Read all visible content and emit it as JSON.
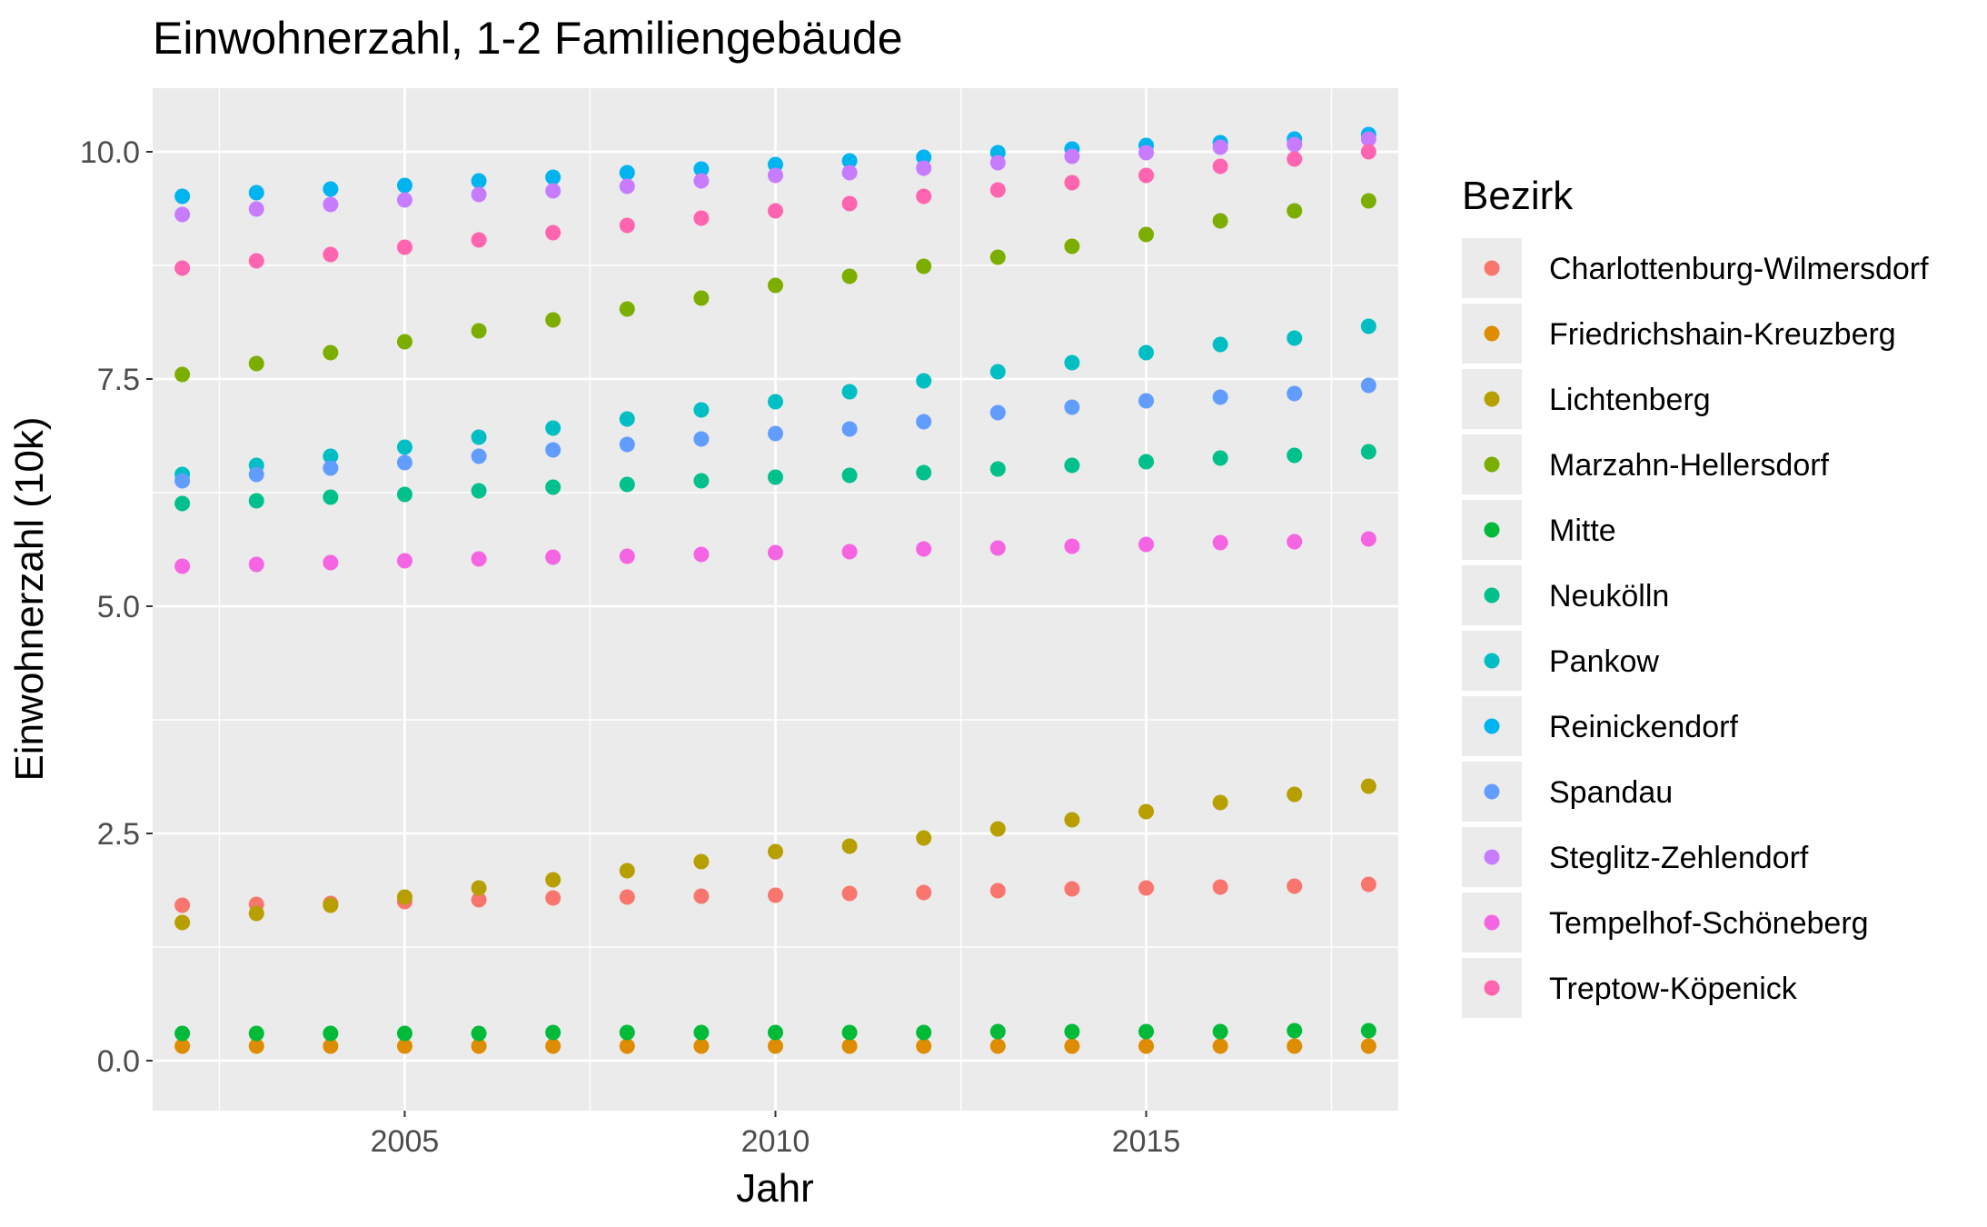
{
  "chart_data": {
    "type": "scatter",
    "title": "Einwohnerzahl, 1-2 Familiengebäude",
    "xlabel": "Jahr",
    "ylabel": "Einwohnerzahl (10k)",
    "xlim": [
      2001.6,
      2018.4
    ],
    "ylim": [
      -0.55,
      10.7
    ],
    "x_ticks": [
      2005,
      2010,
      2015
    ],
    "y_ticks": [
      0.0,
      2.5,
      5.0,
      7.5,
      10.0
    ],
    "x_tick_labels": [
      "2005",
      "2010",
      "2015"
    ],
    "y_tick_labels": [
      "0.0",
      "2.5",
      "5.0",
      "7.5",
      "10.0"
    ],
    "grid": true,
    "legend_title": "Bezirk",
    "legend_position": "right",
    "x": [
      2002,
      2003,
      2004,
      2005,
      2006,
      2007,
      2008,
      2009,
      2010,
      2011,
      2012,
      2013,
      2014,
      2015,
      2016,
      2017,
      2018
    ],
    "series": [
      {
        "name": "Charlottenburg-Wilmersdorf",
        "color": "#F8766D",
        "values": [
          1.71,
          1.72,
          1.73,
          1.75,
          1.77,
          1.79,
          1.8,
          1.81,
          1.82,
          1.84,
          1.85,
          1.87,
          1.89,
          1.9,
          1.91,
          1.92,
          1.94
        ]
      },
      {
        "name": "Friedrichshain-Kreuzberg",
        "color": "#DE8C00",
        "values": [
          0.16,
          0.16,
          0.16,
          0.16,
          0.16,
          0.16,
          0.16,
          0.16,
          0.16,
          0.16,
          0.16,
          0.16,
          0.16,
          0.16,
          0.16,
          0.16,
          0.16
        ]
      },
      {
        "name": "Lichtenberg",
        "color": "#B79F00",
        "values": [
          1.52,
          1.62,
          1.71,
          1.8,
          1.9,
          1.99,
          2.09,
          2.19,
          2.3,
          2.36,
          2.45,
          2.55,
          2.65,
          2.74,
          2.84,
          2.93,
          3.02
        ]
      },
      {
        "name": "Marzahn-Hellersdorf",
        "color": "#7CAE00",
        "values": [
          7.55,
          7.67,
          7.79,
          7.91,
          8.03,
          8.15,
          8.27,
          8.39,
          8.53,
          8.63,
          8.74,
          8.84,
          8.96,
          9.09,
          9.24,
          9.35,
          9.46
        ]
      },
      {
        "name": "Mitte",
        "color": "#00BA38",
        "values": [
          0.3,
          0.3,
          0.3,
          0.3,
          0.3,
          0.31,
          0.31,
          0.31,
          0.31,
          0.31,
          0.31,
          0.32,
          0.32,
          0.32,
          0.32,
          0.33,
          0.33
        ]
      },
      {
        "name": "Neukölln",
        "color": "#00C08B",
        "values": [
          6.13,
          6.16,
          6.2,
          6.23,
          6.27,
          6.31,
          6.34,
          6.38,
          6.42,
          6.44,
          6.47,
          6.51,
          6.55,
          6.59,
          6.63,
          6.66,
          6.7
        ]
      },
      {
        "name": "Pankow",
        "color": "#00BFC4",
        "values": [
          6.45,
          6.55,
          6.65,
          6.75,
          6.86,
          6.96,
          7.06,
          7.16,
          7.25,
          7.36,
          7.48,
          7.58,
          7.68,
          7.79,
          7.88,
          7.95,
          8.08
        ]
      },
      {
        "name": "Reinickendorf",
        "color": "#00B4F0",
        "values": [
          9.51,
          9.55,
          9.59,
          9.63,
          9.68,
          9.72,
          9.77,
          9.81,
          9.86,
          9.9,
          9.94,
          9.99,
          10.03,
          10.07,
          10.1,
          10.14,
          10.19
        ]
      },
      {
        "name": "Spandau",
        "color": "#619CFF",
        "values": [
          6.38,
          6.45,
          6.52,
          6.58,
          6.65,
          6.72,
          6.78,
          6.84,
          6.9,
          6.95,
          7.03,
          7.13,
          7.19,
          7.26,
          7.3,
          7.34,
          7.43
        ]
      },
      {
        "name": "Steglitz-Zehlendorf",
        "color": "#C77CFF",
        "values": [
          9.31,
          9.37,
          9.42,
          9.47,
          9.53,
          9.57,
          9.62,
          9.68,
          9.74,
          9.77,
          9.82,
          9.88,
          9.95,
          9.99,
          10.05,
          10.08,
          10.14
        ]
      },
      {
        "name": "Tempelhof-Schöneberg",
        "color": "#F564E3",
        "values": [
          5.44,
          5.46,
          5.48,
          5.5,
          5.52,
          5.54,
          5.55,
          5.57,
          5.59,
          5.6,
          5.63,
          5.64,
          5.66,
          5.68,
          5.7,
          5.71,
          5.74
        ]
      },
      {
        "name": "Treptow-Köpenick",
        "color": "#FF64B0",
        "values": [
          8.72,
          8.8,
          8.87,
          8.95,
          9.03,
          9.11,
          9.19,
          9.27,
          9.35,
          9.43,
          9.51,
          9.58,
          9.66,
          9.74,
          9.84,
          9.92,
          10.0
        ]
      }
    ]
  }
}
